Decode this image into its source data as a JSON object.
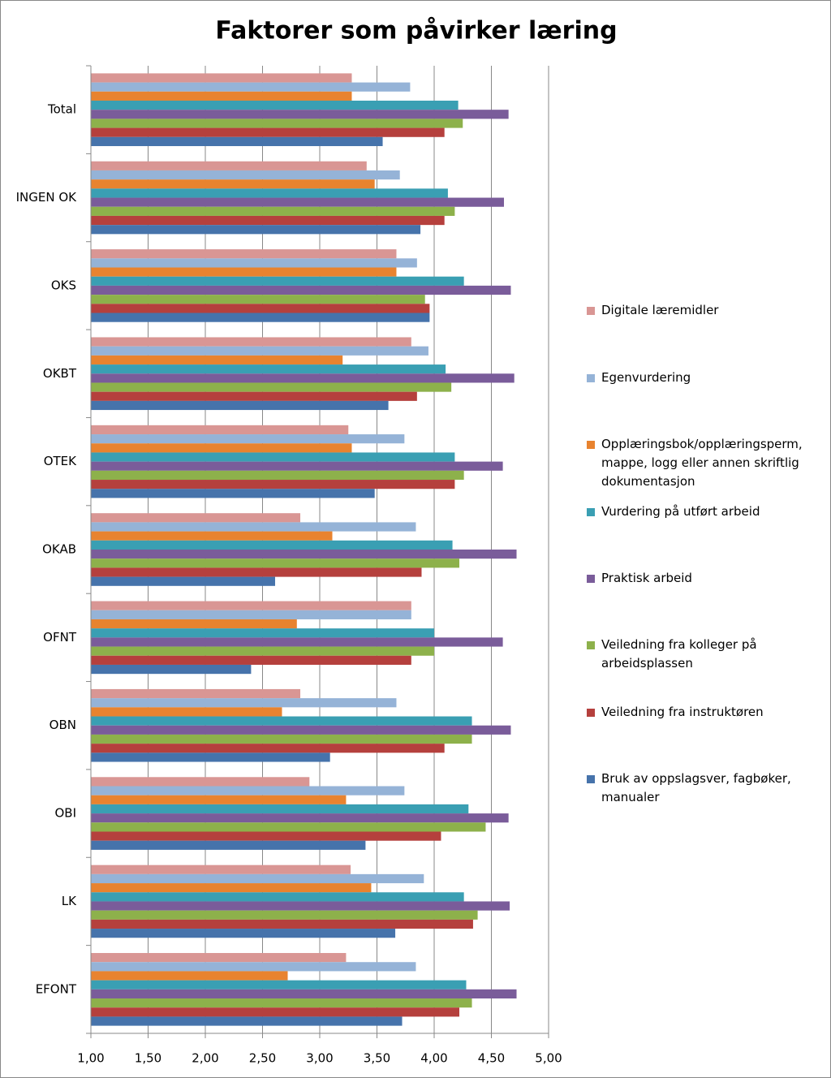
{
  "chart_data": {
    "type": "bar",
    "orientation": "horizontal",
    "title": "Faktorer som påvirker læring",
    "categories": [
      "Total",
      "INGEN OK",
      "OKS",
      "OKBT",
      "OTEK",
      "OKAB",
      "OFNT",
      "OBN",
      "OBI",
      "LK",
      "EFONT"
    ],
    "series": [
      {
        "name": "Digitale læremidler",
        "color": "#d99694",
        "values": [
          3.28,
          3.41,
          3.67,
          3.8,
          3.25,
          2.83,
          3.8,
          2.83,
          2.91,
          3.27,
          3.23
        ]
      },
      {
        "name": "Egenvurdering",
        "color": "#95b3d7",
        "values": [
          3.79,
          3.7,
          3.85,
          3.95,
          3.74,
          3.84,
          3.8,
          3.67,
          3.74,
          3.91,
          3.84
        ]
      },
      {
        "name": "Opplæringsbok/opplæringsperm, mappe, logg eller annen skriftlig dokumentasjon",
        "color": "#e8832f",
        "values": [
          3.28,
          3.48,
          3.67,
          3.2,
          3.28,
          3.11,
          2.8,
          2.67,
          3.23,
          3.45,
          2.72
        ]
      },
      {
        "name": "Vurdering på utført arbeid",
        "color": "#3a9fb3",
        "values": [
          4.21,
          4.12,
          4.26,
          4.1,
          4.18,
          4.16,
          4.0,
          4.33,
          4.3,
          4.26,
          4.28
        ]
      },
      {
        "name": "Praktisk arbeid",
        "color": "#7a5c9a",
        "values": [
          4.65,
          4.61,
          4.67,
          4.7,
          4.6,
          4.72,
          4.6,
          4.67,
          4.65,
          4.66,
          4.72
        ]
      },
      {
        "name": "Veiledning fra kolleger på arbeidsplassen",
        "color": "#8db14b",
        "values": [
          4.25,
          4.18,
          3.92,
          4.15,
          4.26,
          4.22,
          4.0,
          4.33,
          4.45,
          4.38,
          4.33
        ]
      },
      {
        "name": "Veiledning fra instruktøren",
        "color": "#b5403d",
        "values": [
          4.09,
          4.09,
          3.96,
          3.85,
          4.18,
          3.89,
          3.8,
          4.09,
          4.06,
          4.34,
          4.22
        ]
      },
      {
        "name": "Bruk av oppslagsver, fagbøker, manualer",
        "color": "#4673ab",
        "values": [
          3.55,
          3.88,
          3.96,
          3.6,
          3.48,
          2.61,
          2.4,
          3.09,
          3.4,
          3.66,
          3.72
        ]
      }
    ],
    "xlim": [
      1,
      5
    ],
    "xticks": [
      {
        "value": 1,
        "label": "1,00"
      },
      {
        "value": 1.5,
        "label": "1,50"
      },
      {
        "value": 2,
        "label": "2,00"
      },
      {
        "value": 2.5,
        "label": "2,50"
      },
      {
        "value": 3,
        "label": "3,00"
      },
      {
        "value": 3.5,
        "label": "3,50"
      },
      {
        "value": 4,
        "label": "4,00"
      },
      {
        "value": 4.5,
        "label": "4,50"
      },
      {
        "value": 5,
        "label": "5,00"
      }
    ],
    "grid": true
  }
}
